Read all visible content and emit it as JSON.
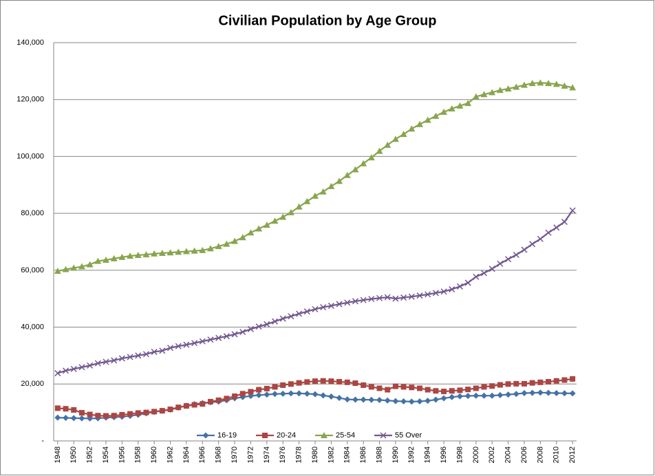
{
  "chart_data": {
    "type": "line",
    "title": "Civilian Population by Age Group",
    "categories": [
      "1948",
      null,
      "1950",
      null,
      "1952",
      null,
      "1954",
      null,
      "1956",
      null,
      "1958",
      null,
      "1960",
      null,
      "1962",
      null,
      "1964",
      null,
      "1966",
      null,
      "1968",
      null,
      "1970",
      null,
      "1972",
      null,
      "1974",
      null,
      "1976",
      null,
      "1978",
      null,
      "1980",
      null,
      "1982",
      null,
      "1984",
      null,
      "1986",
      null,
      "1988",
      null,
      "1990",
      null,
      "1992",
      null,
      "1994",
      null,
      "1996",
      null,
      "1998",
      null,
      "2000",
      null,
      "2002",
      null,
      "2004",
      null,
      "2006",
      null,
      "2008",
      null,
      "2010",
      null,
      "2012"
    ],
    "series": [
      {
        "name": "16-19",
        "color": "#4572a7",
        "marker": "diamond",
        "values": [
          8200,
          8100,
          8000,
          7950,
          7900,
          7950,
          8200,
          8350,
          8500,
          8800,
          9200,
          9700,
          10200,
          10600,
          11000,
          11700,
          12400,
          12900,
          13300,
          13600,
          13800,
          14300,
          15000,
          15400,
          15800,
          16100,
          16300,
          16500,
          16600,
          16700,
          16700,
          16600,
          16400,
          16000,
          15600,
          15100,
          14600,
          14500,
          14500,
          14450,
          14400,
          14200,
          14000,
          13900,
          13800,
          13900,
          14100,
          14500,
          15000,
          15400,
          15700,
          15800,
          15900,
          15900,
          15900,
          16100,
          16300,
          16500,
          16800,
          16900,
          17000,
          16900,
          16800,
          16750,
          16700
        ]
      },
      {
        "name": "20-24",
        "color": "#aa4643",
        "marker": "square",
        "values": [
          11500,
          11300,
          10900,
          9900,
          9300,
          8900,
          8800,
          8900,
          9200,
          9500,
          9800,
          10000,
          10300,
          10600,
          11100,
          11800,
          12300,
          12700,
          13000,
          13800,
          14300,
          14900,
          15700,
          16600,
          17300,
          18000,
          18400,
          19000,
          19600,
          20000,
          20400,
          20700,
          21000,
          21100,
          21000,
          20800,
          20600,
          20300,
          19600,
          19000,
          18500,
          18000,
          19200,
          19000,
          18800,
          18500,
          18000,
          17600,
          17400,
          17600,
          17800,
          18100,
          18500,
          19000,
          19300,
          19700,
          20000,
          20100,
          20100,
          20400,
          20600,
          20800,
          21100,
          21400,
          21800
        ]
      },
      {
        "name": "25-54",
        "color": "#89a54e",
        "marker": "triangle",
        "values": [
          59700,
          60300,
          60800,
          61300,
          62000,
          63200,
          63600,
          64100,
          64600,
          65000,
          65300,
          65500,
          65800,
          66000,
          66200,
          66400,
          66600,
          66800,
          67000,
          67600,
          68400,
          69200,
          70200,
          71500,
          73200,
          74600,
          75900,
          77300,
          78700,
          80300,
          82300,
          84200,
          86100,
          87600,
          89500,
          91300,
          93400,
          95400,
          97500,
          99600,
          101900,
          104000,
          106100,
          107800,
          109700,
          111300,
          112800,
          114200,
          115600,
          116800,
          117800,
          118700,
          121000,
          121800,
          122500,
          123300,
          123800,
          124400,
          125100,
          125700,
          125900,
          125700,
          125400,
          124800,
          124200
        ]
      },
      {
        "name": "55 Over",
        "color": "#71588f",
        "marker": "x",
        "values": [
          23800,
          24700,
          25300,
          25900,
          26500,
          27300,
          27800,
          28300,
          29000,
          29500,
          30000,
          30500,
          31300,
          31700,
          32700,
          33300,
          33800,
          34400,
          35000,
          35600,
          36200,
          36800,
          37500,
          38300,
          39300,
          40200,
          41000,
          42000,
          43000,
          43800,
          44700,
          45500,
          46300,
          47000,
          47500,
          48100,
          48600,
          49100,
          49500,
          49900,
          50200,
          50500,
          50000,
          50400,
          50700,
          51100,
          51500,
          52000,
          52500,
          53300,
          54300,
          55600,
          57700,
          59000,
          60500,
          62300,
          63900,
          65400,
          67200,
          69200,
          71000,
          73200,
          75000,
          77000,
          81000
        ]
      }
    ],
    "ylim": [
      0,
      140000
    ],
    "yticks": [
      {
        "value": 0,
        "label": "-"
      },
      {
        "value": 20000,
        "label": "20,000"
      },
      {
        "value": 40000,
        "label": "40,000"
      },
      {
        "value": 60000,
        "label": "60,000"
      },
      {
        "value": 80000,
        "label": "80,000"
      },
      {
        "value": 100000,
        "label": "100,000"
      },
      {
        "value": 120000,
        "label": "120,000"
      },
      {
        "value": 140000,
        "label": "140,000"
      }
    ],
    "grid": true,
    "legend": "bottom"
  }
}
